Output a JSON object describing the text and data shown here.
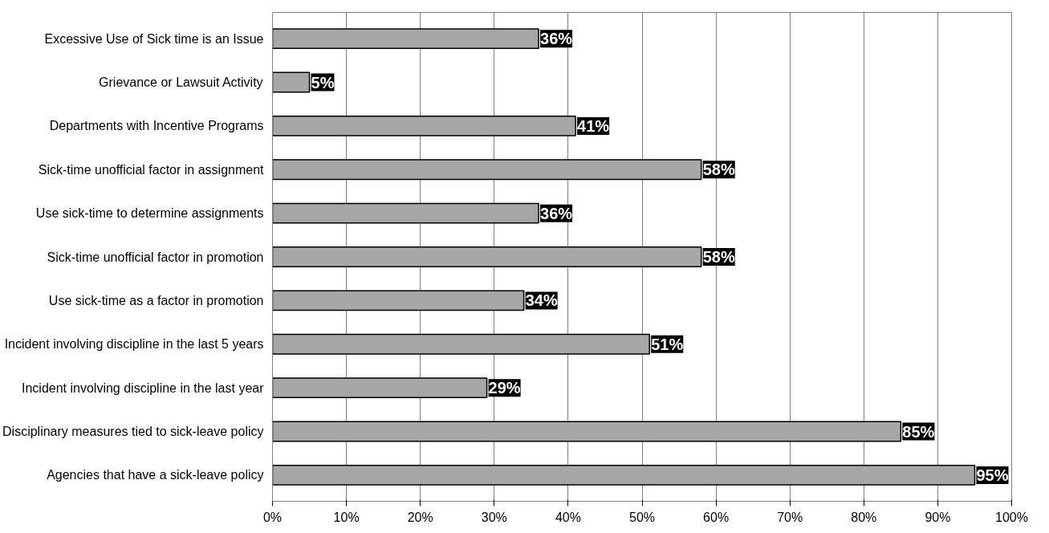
{
  "chart_data": {
    "type": "bar",
    "orientation": "horizontal",
    "categories": [
      "Excessive Use of Sick time is an Issue",
      "Grievance or Lawsuit Activity",
      "Departments with Incentive Programs",
      "Sick-time unofficial factor in assignment",
      "Use sick-time to determine assignments",
      "Sick-time unofficial factor in promotion",
      "Use sick-time as a factor in promotion",
      "Incident involving discipline in the last 5 years",
      "Incident involving discipline in the last year",
      "Disciplinary measures tied to sick-leave policy",
      "Agencies that have a sick-leave policy"
    ],
    "values": [
      36,
      5,
      41,
      58,
      36,
      58,
      34,
      51,
      29,
      85,
      95
    ],
    "value_labels": [
      "36%",
      "5%",
      "41%",
      "58%",
      "36%",
      "58%",
      "34%",
      "51%",
      "29%",
      "85%",
      "95%"
    ],
    "color": "#a6a6a6",
    "xlim": [
      0,
      100
    ],
    "xticks": [
      {
        "value": 0,
        "label": "0%"
      },
      {
        "value": 10,
        "label": "10%"
      },
      {
        "value": 20,
        "label": "20%"
      },
      {
        "value": 30,
        "label": "30%"
      },
      {
        "value": 40,
        "label": "40%"
      },
      {
        "value": 50,
        "label": "50%"
      },
      {
        "value": 60,
        "label": "60%"
      },
      {
        "value": 70,
        "label": "70%"
      },
      {
        "value": 80,
        "label": "80%"
      },
      {
        "value": 90,
        "label": "90%"
      },
      {
        "value": 100,
        "label": "100%"
      }
    ],
    "grid": "x"
  }
}
